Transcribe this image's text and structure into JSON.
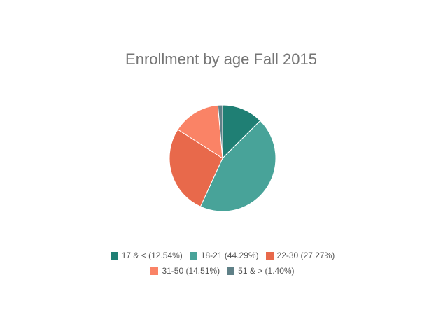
{
  "chart_data": {
    "type": "pie",
    "title": "Enrollment by age Fall 2015",
    "categories": [
      "17 & < (12.54%)",
      "18-21 (44.29%)",
      "22-30 (27.27%)",
      "31-50 (14.51%)",
      "51 & > (1.40%)"
    ],
    "values": [
      12.54,
      44.29,
      27.27,
      14.51,
      1.4
    ],
    "colors": [
      "#1f7f74",
      "#48a399",
      "#e8694b",
      "#fa8366",
      "#5f8087"
    ]
  }
}
